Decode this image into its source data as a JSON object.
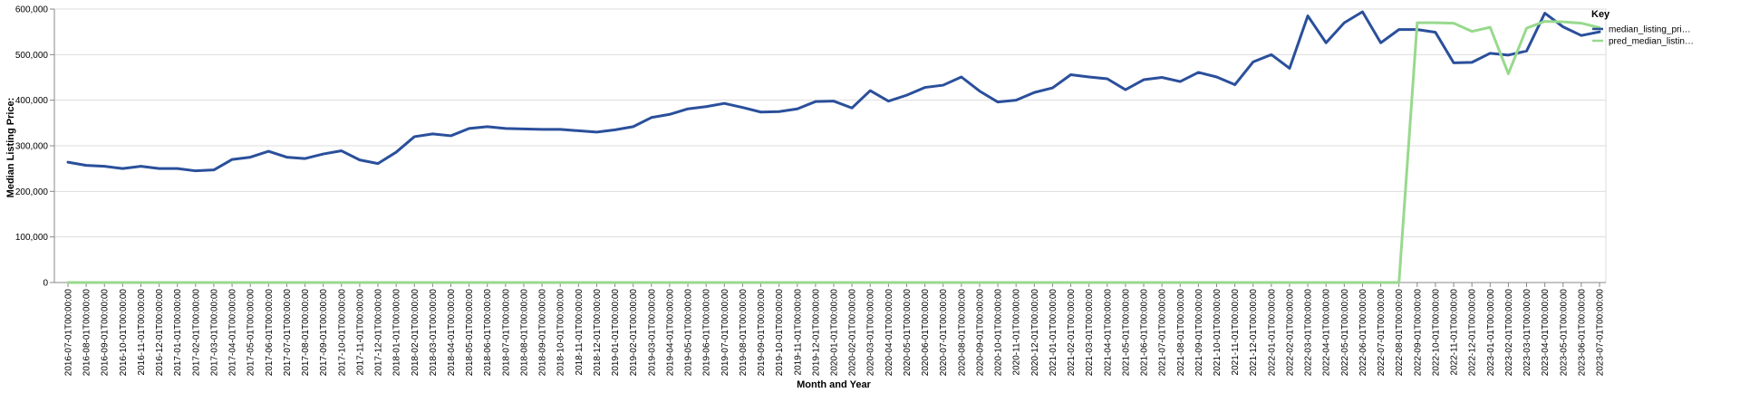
{
  "chart_data": {
    "type": "line",
    "xlabel": "Month and Year",
    "ylabel": "Median Listing Price:",
    "ylim": [
      0,
      600000
    ],
    "y_ticks": [
      "0",
      "100,000",
      "200,000",
      "300,000",
      "400,000",
      "500,000",
      "600,000"
    ],
    "grid": "horizontal",
    "legend": {
      "title": "Key",
      "position": "top-right",
      "entries": [
        "median_listing_pri…",
        "pred_median_listin…"
      ]
    },
    "categories": [
      "2016-07-01T00:00:00",
      "2016-08-01T00:00:00",
      "2016-09-01T00:00:00",
      "2016-10-01T00:00:00",
      "2016-11-01T00:00:00",
      "2016-12-01T00:00:00",
      "2017-01-01T00:00:00",
      "2017-02-01T00:00:00",
      "2017-03-01T00:00:00",
      "2017-04-01T00:00:00",
      "2017-05-01T00:00:00",
      "2017-06-01T00:00:00",
      "2017-07-01T00:00:00",
      "2017-08-01T00:00:00",
      "2017-09-01T00:00:00",
      "2017-10-01T00:00:00",
      "2017-11-01T00:00:00",
      "2017-12-01T00:00:00",
      "2018-01-01T00:00:00",
      "2018-02-01T00:00:00",
      "2018-03-01T00:00:00",
      "2018-04-01T00:00:00",
      "2018-05-01T00:00:00",
      "2018-06-01T00:00:00",
      "2018-07-01T00:00:00",
      "2018-08-01T00:00:00",
      "2018-09-01T00:00:00",
      "2018-10-01T00:00:00",
      "2018-11-01T00:00:00",
      "2018-12-01T00:00:00",
      "2019-01-01T00:00:00",
      "2019-02-01T00:00:00",
      "2019-03-01T00:00:00",
      "2019-04-01T00:00:00",
      "2019-05-01T00:00:00",
      "2019-06-01T00:00:00",
      "2019-07-01T00:00:00",
      "2019-08-01T00:00:00",
      "2019-09-01T00:00:00",
      "2019-10-01T00:00:00",
      "2019-11-01T00:00:00",
      "2019-12-01T00:00:00",
      "2020-01-01T00:00:00",
      "2020-02-01T00:00:00",
      "2020-03-01T00:00:00",
      "2020-04-01T00:00:00",
      "2020-05-01T00:00:00",
      "2020-06-01T00:00:00",
      "2020-07-01T00:00:00",
      "2020-08-01T00:00:00",
      "2020-09-01T00:00:00",
      "2020-10-01T00:00:00",
      "2020-11-01T00:00:00",
      "2020-12-01T00:00:00",
      "2021-01-01T00:00:00",
      "2021-02-01T00:00:00",
      "2021-03-01T00:00:00",
      "2021-04-01T00:00:00",
      "2021-05-01T00:00:00",
      "2021-06-01T00:00:00",
      "2021-07-01T00:00:00",
      "2021-08-01T00:00:00",
      "2021-09-01T00:00:00",
      "2021-10-01T00:00:00",
      "2021-11-01T00:00:00",
      "2021-12-01T00:00:00",
      "2022-01-01T00:00:00",
      "2022-02-01T00:00:00",
      "2022-03-01T00:00:00",
      "2022-04-01T00:00:00",
      "2022-05-01T00:00:00",
      "2022-06-01T00:00:00",
      "2022-07-01T00:00:00",
      "2022-08-01T00:00:00",
      "2022-09-01T00:00:00",
      "2022-10-01T00:00:00",
      "2022-11-01T00:00:00",
      "2022-12-01T00:00:00",
      "2023-01-01T00:00:00",
      "2023-02-01T00:00:00",
      "2023-03-01T00:00:00",
      "2023-04-01T00:00:00",
      "2023-05-01T00:00:00",
      "2023-06-01T00:00:00",
      "2023-07-01T00:00:00"
    ],
    "series": [
      {
        "name": "median_listing_pri…",
        "color": "#2a4f9b",
        "values": [
          264000,
          257000,
          255000,
          250000,
          255000,
          250000,
          250000,
          245000,
          247000,
          270000,
          275000,
          288000,
          275000,
          272000,
          282000,
          289000,
          269000,
          261000,
          286000,
          320000,
          326000,
          322000,
          338000,
          342000,
          338000,
          337000,
          336000,
          336000,
          333000,
          330000,
          335000,
          342000,
          362000,
          369000,
          381000,
          386000,
          393000,
          384000,
          374000,
          375000,
          381000,
          397000,
          398000,
          383000,
          421000,
          398000,
          411000,
          428000,
          433000,
          451000,
          420000,
          396000,
          400000,
          417000,
          427000,
          456000,
          451000,
          447000,
          423000,
          445000,
          450000,
          441000,
          461000,
          451000,
          434000,
          484000,
          500000,
          470000,
          585000,
          526000,
          570000,
          594000,
          526000,
          555000,
          555000,
          549000,
          482000,
          483000,
          503000,
          499000,
          508000,
          591000,
          561000,
          542000,
          550000
        ]
      },
      {
        "name": "pred_median_listin…",
        "color": "#98d98e",
        "values": [
          0,
          0,
          0,
          0,
          0,
          0,
          0,
          0,
          0,
          0,
          0,
          0,
          0,
          0,
          0,
          0,
          0,
          0,
          0,
          0,
          0,
          0,
          0,
          0,
          0,
          0,
          0,
          0,
          0,
          0,
          0,
          0,
          0,
          0,
          0,
          0,
          0,
          0,
          0,
          0,
          0,
          0,
          0,
          0,
          0,
          0,
          0,
          0,
          0,
          0,
          0,
          0,
          0,
          0,
          0,
          0,
          0,
          0,
          0,
          0,
          0,
          0,
          0,
          0,
          0,
          0,
          0,
          0,
          0,
          0,
          0,
          0,
          0,
          0,
          570000,
          570000,
          569000,
          551000,
          560000,
          458000,
          558000,
          573000,
          572000,
          569000,
          559000
        ]
      }
    ]
  }
}
